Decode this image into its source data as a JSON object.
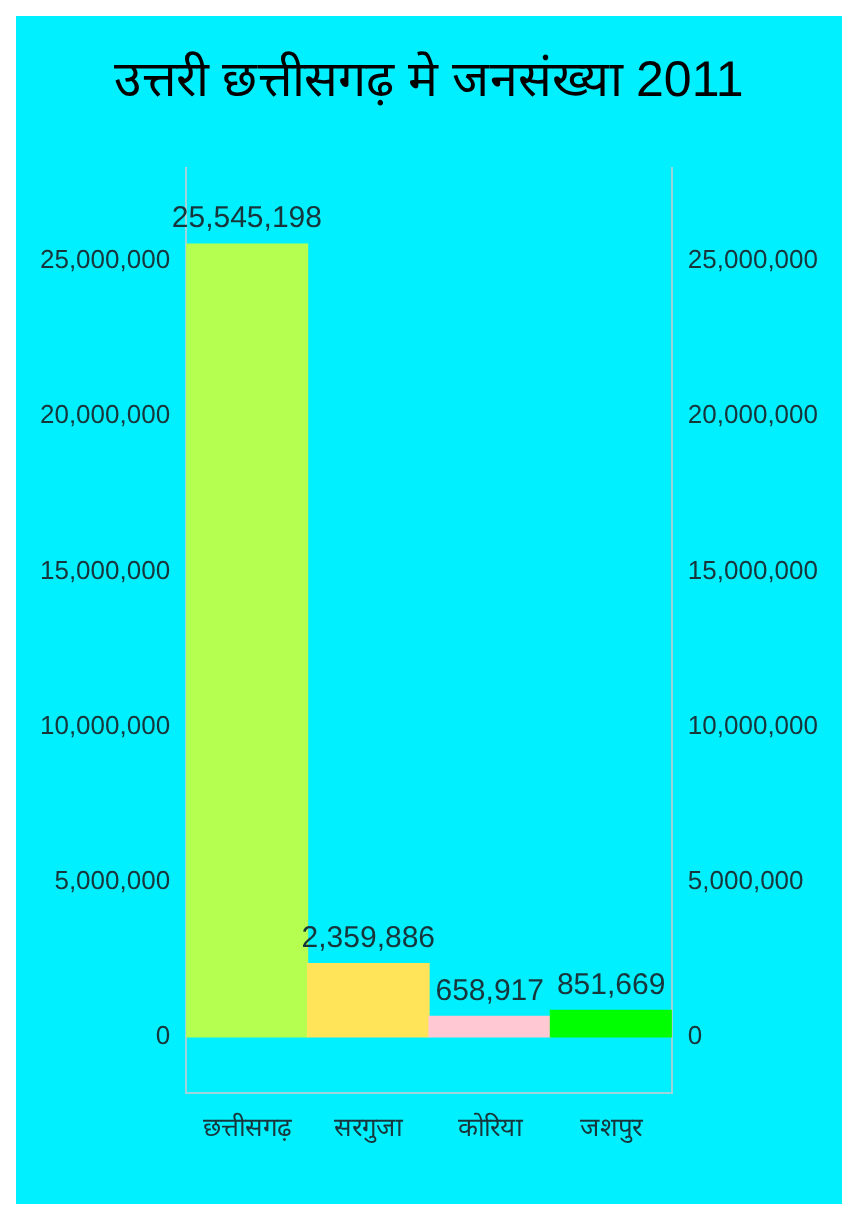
{
  "chart_data": {
    "type": "bar",
    "title": "उत्तरी छत्तीसगढ़ मे जनसंख्या 2011",
    "categories": [
      "छत्तीसगढ़",
      "सरगुजा",
      "कोरिया",
      "जशपुर"
    ],
    "values": [
      25545198,
      2359886,
      658917,
      851669
    ],
    "value_labels": [
      "25,545,198",
      "2,359,886",
      "658,917",
      "851,669"
    ],
    "colors": [
      "#b4ff50",
      "#ffe45a",
      "#ffc8d2",
      "#00ff00"
    ],
    "ylim": [
      -1800000,
      28000000
    ],
    "yticks": [
      0,
      {
        "value": 5000000,
        "label": "5,000,000"
      },
      {
        "value": 10000000,
        "label": "10,000,000"
      },
      {
        "value": 15000000,
        "label": "15,000,000"
      },
      {
        "value": 20000000,
        "label": "20,000,000"
      },
      {
        "value": 25000000,
        "label": "25,000,000"
      }
    ],
    "y2lim": [
      -1800000,
      28000000
    ],
    "y2ticks": [
      0,
      {
        "value": 5000000,
        "label": "5,000,000"
      },
      {
        "value": 10000000,
        "label": "10,000,000"
      },
      {
        "value": 15000000,
        "label": "15,000,000"
      },
      {
        "value": 20000000,
        "label": "20,000,000"
      },
      {
        "value": 25000000,
        "label": "25,000,000"
      }
    ],
    "grid": false,
    "legend": false
  }
}
